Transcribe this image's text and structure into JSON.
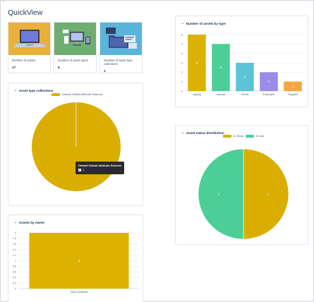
{
  "page": {
    "title": "QuickView",
    "corner_glyph": "⌃",
    "corner_icon": "collapse-icon"
  },
  "stats": [
    {
      "label": "Number of assets",
      "value": "17",
      "icon": "laptop-illustration",
      "bg": "#e9b13b"
    },
    {
      "label": "Number of asset types",
      "value": "5",
      "icon": "devices-illustration",
      "bg": "#6fae73"
    },
    {
      "label": "Number of asset type collections",
      "value": "2",
      "icon": "folders-illustration",
      "bg": "#5cb4d9"
    }
  ],
  "chevron_glyph": "⌄",
  "assets_by_type": {
    "title": "Number of assets by type",
    "chart_data": {
      "type": "bar",
      "categories": [
        "Laptop",
        "License",
        "Server",
        "Employee",
        "Supplier"
      ],
      "values": [
        6,
        5,
        3,
        2,
        1
      ],
      "colors": [
        "#dcb100",
        "#4bcf97",
        "#5bc4d7",
        "#9a8ce8",
        "#f5a640"
      ],
      "ylim": [
        0,
        6
      ],
      "yticks": [
        "0",
        "1",
        "2",
        "3",
        "4",
        "5",
        "6"
      ],
      "grid": true
    }
  },
  "type_collections": {
    "title": "Asset type collections",
    "chart_data": {
      "type": "pie",
      "labels": [
        "Default Global Attribute Scheme"
      ],
      "values": [
        1
      ],
      "colors": [
        "#d9ae00"
      ],
      "legend": "top"
    },
    "tooltip": {
      "title": "Default Global Attribute Scheme",
      "value": "1"
    }
  },
  "status_distribution": {
    "title": "Asset status distribution",
    "chart_data": {
      "type": "pie",
      "labels": [
        "In Stock",
        "In Use"
      ],
      "values": [
        1,
        1
      ],
      "colors": [
        "#d9ae00",
        "#4bcf97"
      ],
      "legend": "top"
    }
  },
  "assets_by_owner": {
    "title": "Assets by owner",
    "chart_data": {
      "type": "bar",
      "categories": [
        "Deva Özdemir"
      ],
      "values": [
        2
      ],
      "colors": [
        "#dcb100"
      ],
      "ylim": [
        0,
        2
      ],
      "yticks": [
        "0",
        "0.2",
        "0.4",
        "0.6",
        "0.8",
        "1",
        "1.2",
        "1.4",
        "1.6",
        "1.8",
        "2"
      ],
      "grid": true
    }
  }
}
